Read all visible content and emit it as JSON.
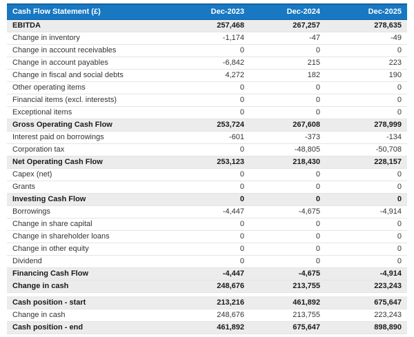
{
  "colors": {
    "header_bg": "#1878c2",
    "header_border": "#1261a0",
    "header_text": "#ffffff",
    "shaded_row_bg": "#ececec",
    "row_border": "#e4e4e4",
    "text": "#333333",
    "bold_text": "#1a1a1a",
    "page_bg": "#ffffff"
  },
  "table": {
    "header": {
      "label": "Cash Flow Statement (£)",
      "columns": [
        "Dec-2023",
        "Dec-2024",
        "Dec-2025"
      ]
    },
    "sections": [
      {
        "name": "cash-flow",
        "rows": [
          {
            "label": "EBITDA",
            "values": [
              "257,468",
              "267,257",
              "278,635"
            ],
            "bold": true,
            "shaded": true
          },
          {
            "label": "Change in inventory",
            "values": [
              "-1,174",
              "-47",
              "-49"
            ],
            "bold": false,
            "shaded": false
          },
          {
            "label": "Change in account receivables",
            "values": [
              "0",
              "0",
              "0"
            ],
            "bold": false,
            "shaded": false
          },
          {
            "label": "Change in account payables",
            "values": [
              "-6,842",
              "215",
              "223"
            ],
            "bold": false,
            "shaded": false
          },
          {
            "label": "Change in fiscal and social debts",
            "values": [
              "4,272",
              "182",
              "190"
            ],
            "bold": false,
            "shaded": false
          },
          {
            "label": "Other operating items",
            "values": [
              "0",
              "0",
              "0"
            ],
            "bold": false,
            "shaded": false
          },
          {
            "label": "Financial items (excl. interests)",
            "values": [
              "0",
              "0",
              "0"
            ],
            "bold": false,
            "shaded": false
          },
          {
            "label": "Exceptional items",
            "values": [
              "0",
              "0",
              "0"
            ],
            "bold": false,
            "shaded": false
          },
          {
            "label": "Gross Operating Cash Flow",
            "values": [
              "253,724",
              "267,608",
              "278,999"
            ],
            "bold": true,
            "shaded": true
          },
          {
            "label": "Interest paid on borrowings",
            "values": [
              "-601",
              "-373",
              "-134"
            ],
            "bold": false,
            "shaded": false
          },
          {
            "label": "Corporation tax",
            "values": [
              "0",
              "-48,805",
              "-50,708"
            ],
            "bold": false,
            "shaded": false
          },
          {
            "label": "Net Operating Cash Flow",
            "values": [
              "253,123",
              "218,430",
              "228,157"
            ],
            "bold": true,
            "shaded": true
          },
          {
            "label": "Capex (net)",
            "values": [
              "0",
              "0",
              "0"
            ],
            "bold": false,
            "shaded": false
          },
          {
            "label": "Grants",
            "values": [
              "0",
              "0",
              "0"
            ],
            "bold": false,
            "shaded": false
          },
          {
            "label": "Investing Cash Flow",
            "values": [
              "0",
              "0",
              "0"
            ],
            "bold": true,
            "shaded": true
          },
          {
            "label": "Borrowings",
            "values": [
              "-4,447",
              "-4,675",
              "-4,914"
            ],
            "bold": false,
            "shaded": false
          },
          {
            "label": "Change in share capital",
            "values": [
              "0",
              "0",
              "0"
            ],
            "bold": false,
            "shaded": false
          },
          {
            "label": "Change in shareholder loans",
            "values": [
              "0",
              "0",
              "0"
            ],
            "bold": false,
            "shaded": false
          },
          {
            "label": "Change in other equity",
            "values": [
              "0",
              "0",
              "0"
            ],
            "bold": false,
            "shaded": false
          },
          {
            "label": "Dividend",
            "values": [
              "0",
              "0",
              "0"
            ],
            "bold": false,
            "shaded": false
          },
          {
            "label": "Financing Cash Flow",
            "values": [
              "-4,447",
              "-4,675",
              "-4,914"
            ],
            "bold": true,
            "shaded": true
          },
          {
            "label": "Change in cash",
            "values": [
              "248,676",
              "213,755",
              "223,243"
            ],
            "bold": true,
            "shaded": true
          }
        ]
      },
      {
        "name": "cash-position",
        "rows": [
          {
            "label": "Cash position - start",
            "values": [
              "213,216",
              "461,892",
              "675,647"
            ],
            "bold": true,
            "shaded": true
          },
          {
            "label": "Change in cash",
            "values": [
              "248,676",
              "213,755",
              "223,243"
            ],
            "bold": false,
            "shaded": false
          },
          {
            "label": "Cash position - end",
            "values": [
              "461,892",
              "675,647",
              "898,890"
            ],
            "bold": true,
            "shaded": true
          }
        ]
      }
    ]
  }
}
